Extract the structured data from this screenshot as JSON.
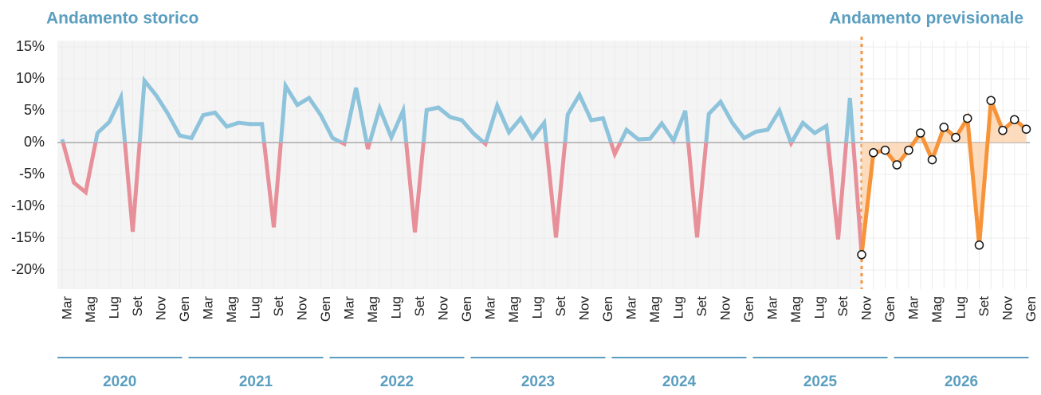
{
  "chart_data": {
    "type": "line",
    "title": "Andamento storico",
    "subtitle": "Andamento previsionale",
    "categories": [
      "Mar",
      null,
      "Mag",
      null,
      "Lug",
      null,
      "Set",
      null,
      "Nov",
      null,
      "Gen",
      null,
      "Mar",
      null,
      "Mag",
      null,
      "Lug",
      null,
      "Set",
      null,
      "Nov",
      null,
      "Gen",
      null,
      "Mar",
      null,
      "Mag",
      null,
      "Lug",
      null,
      "Set",
      null,
      "Nov",
      null,
      "Gen",
      null,
      "Mar",
      null,
      "Mag",
      null,
      "Lug",
      null,
      "Set",
      null,
      "Nov",
      null,
      "Gen",
      null,
      "Mar",
      null,
      "Mag",
      null,
      "Lug",
      null,
      "Set",
      null,
      "Nov",
      null,
      "Gen",
      null,
      "Mar",
      null,
      "Mag",
      null,
      "Lug",
      null,
      "Set",
      null,
      "Nov",
      null,
      "Gen",
      null,
      "Mar",
      null,
      "Mag",
      null,
      "Lug",
      null,
      "Set",
      null,
      "Nov",
      null,
      "Gen"
    ],
    "years": [
      "2020",
      "2021",
      "2022",
      "2023",
      "2024",
      "2025",
      "2026"
    ],
    "series": [
      {
        "color": "#8ec3dc",
        "negative_color": "#e8909a",
        "values": [
          0.5,
          -6.3,
          -7.8,
          1.5,
          3.2,
          7.1,
          -14,
          9.7,
          7.4,
          4.5,
          1.1,
          0.7,
          4.3,
          4.7,
          2.5,
          3.1,
          2.9,
          2.9,
          -13.3,
          8.9,
          5.9,
          7.0,
          4.3,
          0.7,
          -0.2,
          8.6,
          -1,
          5.4,
          0.8,
          5,
          -14.1,
          5.1,
          5.5,
          4,
          3.5,
          1.4,
          -0.2,
          5.8,
          1.6,
          3.8,
          0.7,
          3.1,
          -14.9,
          4.4,
          7.5,
          3.5,
          3.8,
          -1.8,
          2,
          0.5,
          0.6,
          3,
          0.3,
          5,
          -14.9,
          4.5,
          6.4,
          3.1,
          0.7,
          1.7,
          2,
          5,
          -0.1,
          3.1,
          1.5,
          2.6,
          -15.2,
          7,
          -17.6,
          null,
          null,
          null,
          null,
          null,
          null,
          null,
          null,
          null,
          null,
          null,
          null,
          null,
          null
        ]
      },
      {
        "color": "#f7943a",
        "fill": "#fdd3ae",
        "markers": true,
        "values": [
          null,
          null,
          null,
          null,
          null,
          null,
          null,
          null,
          null,
          null,
          null,
          null,
          null,
          null,
          null,
          null,
          null,
          null,
          null,
          null,
          null,
          null,
          null,
          null,
          null,
          null,
          null,
          null,
          null,
          null,
          null,
          null,
          null,
          null,
          null,
          null,
          null,
          null,
          null,
          null,
          null,
          null,
          null,
          null,
          null,
          null,
          null,
          null,
          null,
          null,
          null,
          null,
          null,
          null,
          null,
          null,
          null,
          null,
          null,
          null,
          null,
          null,
          null,
          null,
          null,
          null,
          null,
          null,
          -17.6,
          -1.6,
          -1.2,
          -3.5,
          -1.2,
          1.5,
          -2.7,
          2.4,
          0.8,
          3.8,
          -16.1,
          6.6,
          1.9,
          3.6,
          2.1
        ]
      }
    ],
    "ylim": [
      -23,
      16
    ],
    "yticks": [
      {
        "value": -20,
        "label": "-20%"
      },
      {
        "value": -15,
        "label": "-15%"
      },
      {
        "value": -10,
        "label": "-10%"
      },
      {
        "value": -5,
        "label": "-5%"
      },
      {
        "value": 0,
        "label": "0%"
      },
      {
        "value": 5,
        "label": "5%"
      },
      {
        "value": 10,
        "label": "10%"
      },
      {
        "value": 15,
        "label": "15%"
      }
    ],
    "grid": true
  }
}
